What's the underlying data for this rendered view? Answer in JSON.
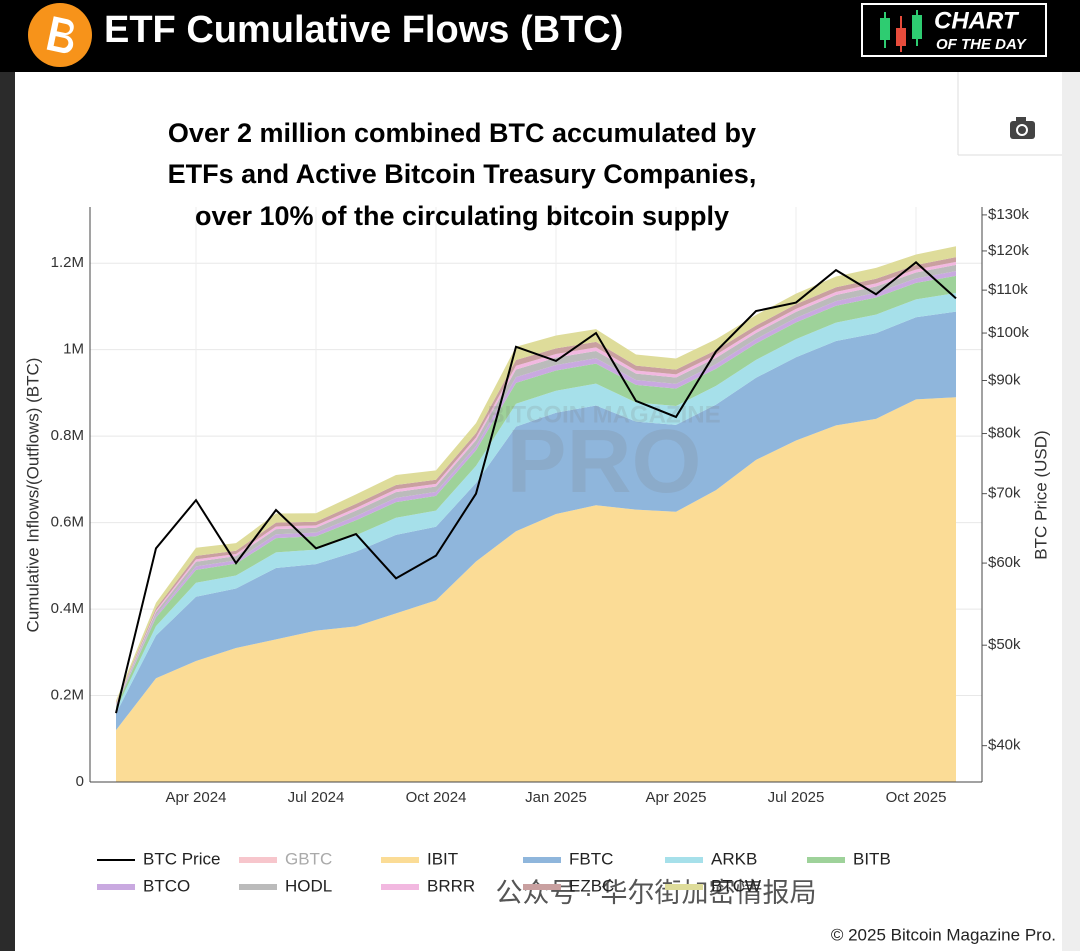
{
  "header": {
    "title": "ETF Cumulative Flows (BTC)",
    "badge_line1": "CHART",
    "badge_line2": "OF THE DAY"
  },
  "chart_data": {
    "type": "area",
    "stacked": true,
    "title_lines": [
      "Over 2 million combined BTC accumulated by",
      "ETFs and Active Bitcoin Treasury Companies,",
      "over 10% of the circulating bitcoin supply"
    ],
    "y_label": "Cumulative Inflows/(Outflows) (BTC)",
    "y2_label": "BTC Price (USD)",
    "watermark": [
      "BITCOIN MAGAZINE",
      "PRO"
    ],
    "categories": [
      null,
      null,
      "Apr 2024",
      null,
      null,
      "Jul 2024",
      null,
      null,
      "Oct 2024",
      null,
      null,
      "Jan 2025",
      null,
      null,
      "Apr 2025",
      null,
      null,
      "Jul 2025",
      null,
      null,
      "Oct 2025",
      null
    ],
    "ylim": [
      0,
      1330000
    ],
    "yticks": [
      0,
      {
        "value": 200000,
        "label": "0.2M"
      },
      {
        "value": 400000,
        "label": "0.4M"
      },
      {
        "value": 600000,
        "label": "0.6M"
      },
      {
        "value": 800000,
        "label": "0.8M"
      },
      {
        "value": 1000000,
        "label": "1M"
      },
      {
        "value": 1200000,
        "label": "1.2M"
      }
    ],
    "y2lim": [
      36900,
      132300
    ],
    "y2_log": true,
    "y2ticks": [
      {
        "value": 40000,
        "label": "$40k"
      },
      {
        "value": 50000,
        "label": "$50k"
      },
      {
        "value": 60000,
        "label": "$60k"
      },
      {
        "value": 70000,
        "label": "$70k"
      },
      {
        "value": 80000,
        "label": "$80k"
      },
      {
        "value": 90000,
        "label": "$90k"
      },
      {
        "value": 100000,
        "label": "$100k"
      },
      {
        "value": 110000,
        "label": "$110k"
      },
      {
        "value": 120000,
        "label": "$120k"
      },
      {
        "value": 130000,
        "label": "$130k"
      }
    ],
    "grid": true,
    "series": [
      {
        "name": "BTC Price",
        "color": "#000000",
        "type": "line",
        "axis": "y2",
        "values": [
          43000,
          62000,
          69000,
          60000,
          67500,
          62000,
          64000,
          58000,
          61000,
          70000,
          97000,
          94000,
          100000,
          86000,
          83000,
          96000,
          105000,
          107000,
          115000,
          109000,
          117000,
          108000
        ]
      },
      {
        "name": "GBTC",
        "color": "#f7c6cc",
        "visible": false
      },
      {
        "name": "IBIT",
        "color": "#fbdc96",
        "values": [
          120000,
          240000,
          280000,
          310000,
          330000,
          350000,
          360000,
          390000,
          420000,
          510000,
          580000,
          620000,
          640000,
          630000,
          625000,
          675000,
          745000,
          790000,
          825000,
          840000,
          885000,
          890000
        ]
      },
      {
        "name": "FBTC",
        "color": "#8fb6dc",
        "values": [
          38500,
          99000,
          148500,
          137500,
          165000,
          154000,
          173000,
          181500,
          170500,
          181500,
          242000,
          234000,
          231000,
          203500,
          201000,
          198000,
          190000,
          192500,
          195000,
          198000,
          190000,
          198000
        ]
      },
      {
        "name": "ARKB",
        "color": "#a6e0ea",
        "values": [
          8400,
          21600,
          32400,
          30000,
          36000,
          33600,
          37800,
          39600,
          37200,
          39600,
          52800,
          51000,
          50400,
          44400,
          43800,
          43200,
          41400,
          42000,
          42600,
          43200,
          41400,
          43200
        ]
      },
      {
        "name": "BITB",
        "color": "#9ed29a",
        "values": [
          7700,
          19800,
          29700,
          27500,
          33000,
          30800,
          34700,
          36300,
          34100,
          36300,
          48400,
          46800,
          46200,
          40700,
          40200,
          39600,
          38000,
          38500,
          39000,
          39600,
          38000,
          39600
        ]
      },
      {
        "name": "BTCO",
        "color": "#c9a9e0",
        "values": [
          2100,
          5400,
          8100,
          7500,
          9000,
          8400,
          9500,
          9900,
          9300,
          9900,
          13200,
          12800,
          12600,
          11100,
          11000,
          10800,
          10400,
          10500,
          10700,
          10800,
          10400,
          10800
        ]
      },
      {
        "name": "HODL",
        "color": "#bbbbbb",
        "values": [
          2800,
          7200,
          10800,
          10000,
          12000,
          11200,
          12600,
          13200,
          12400,
          13200,
          17600,
          17000,
          16800,
          14800,
          14600,
          14400,
          13800,
          14000,
          14200,
          14400,
          13800,
          14400
        ]
      },
      {
        "name": "BRRR",
        "color": "#f2b8e0",
        "values": [
          1400,
          3600,
          5400,
          5000,
          6000,
          5600,
          6300,
          6600,
          6200,
          6600,
          8800,
          8500,
          8400,
          7400,
          7300,
          7200,
          6900,
          7000,
          7100,
          7200,
          6900,
          7200
        ]
      },
      {
        "name": "EZBC",
        "color": "#c9a0a0",
        "values": [
          2100,
          5400,
          8100,
          7500,
          9000,
          8400,
          9500,
          9900,
          9300,
          9900,
          13200,
          12800,
          12600,
          11100,
          11000,
          10800,
          10400,
          10500,
          10700,
          10800,
          10400,
          10800
        ]
      },
      {
        "name": "BTCW",
        "color": "#dedc9a",
        "values": [
          4900,
          12600,
          18900,
          17500,
          21000,
          19600,
          22000,
          23100,
          21700,
          23100,
          30800,
          29800,
          29400,
          25900,
          25600,
          25200,
          24200,
          24500,
          24900,
          25200,
          24200,
          25200
        ]
      }
    ]
  },
  "footer": {
    "wechat": "公众号 · 华尔街加密情报局",
    "copyright": "© 2025 Bitcoin Magazine Pro."
  }
}
